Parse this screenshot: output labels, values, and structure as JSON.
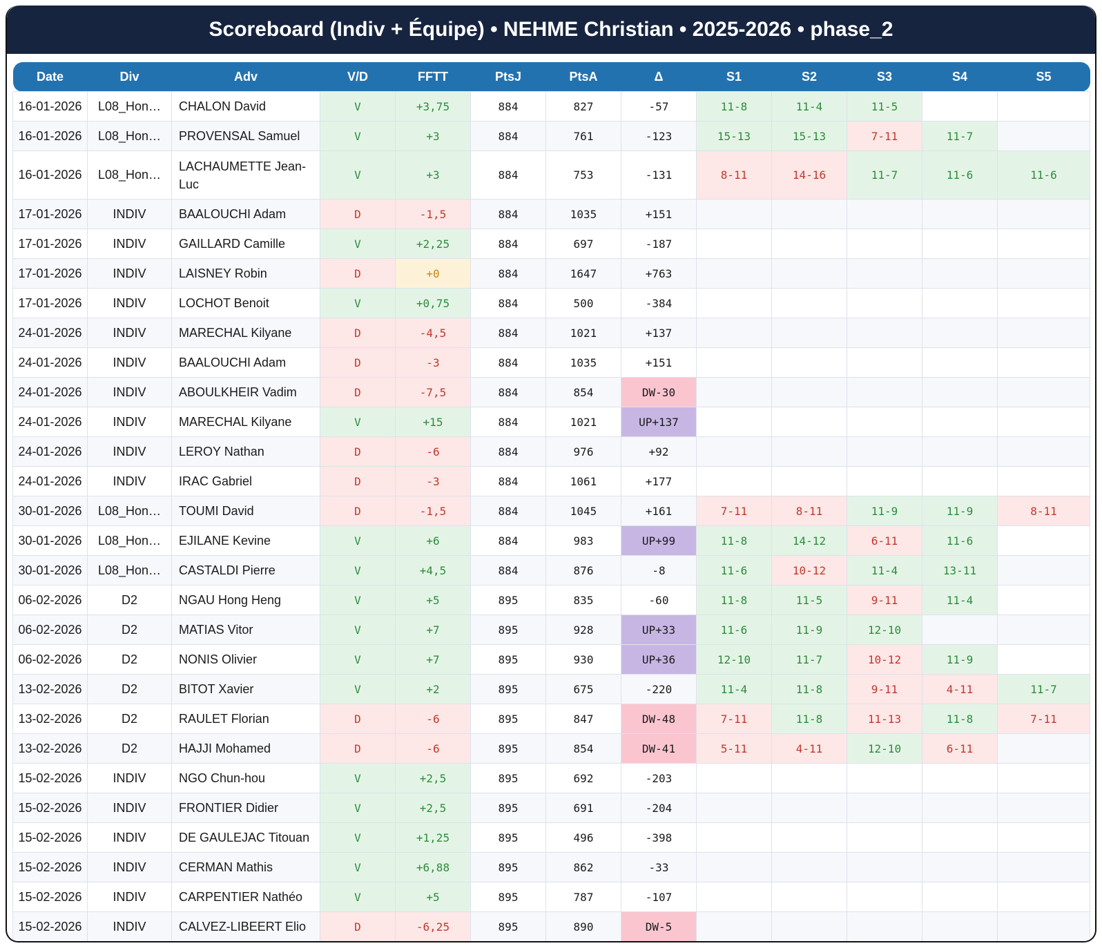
{
  "title": "Scoreboard (Indiv + Équipe) • NEHME Christian • 2025-2026 • phase_2",
  "columns": [
    "Date",
    "Div",
    "Adv",
    "V/D",
    "FFTT",
    "PtsJ",
    "PtsA",
    "Δ",
    "S1",
    "S2",
    "S3",
    "S4",
    "S5"
  ],
  "rows": [
    {
      "date": "16-01-2026",
      "div": "L08_Hon…",
      "adv": "CHALON David",
      "vd": "V",
      "fftt": "+3,75",
      "ptsj": "884",
      "ptsa": "827",
      "delta": "-57",
      "sets": [
        "11-8",
        "11-4",
        "11-5",
        "",
        ""
      ]
    },
    {
      "date": "16-01-2026",
      "div": "L08_Hon…",
      "adv": "PROVENSAL Samuel",
      "vd": "V",
      "fftt": "+3",
      "ptsj": "884",
      "ptsa": "761",
      "delta": "-123",
      "sets": [
        "15-13",
        "15-13",
        "7-11",
        "11-7",
        ""
      ]
    },
    {
      "date": "16-01-2026",
      "div": "L08_Hon…",
      "adv": "LACHAUMETTE Jean-Luc",
      "vd": "V",
      "fftt": "+3",
      "ptsj": "884",
      "ptsa": "753",
      "delta": "-131",
      "sets": [
        "8-11",
        "14-16",
        "11-7",
        "11-6",
        "11-6"
      ],
      "tall": true
    },
    {
      "date": "17-01-2026",
      "div": "INDIV",
      "adv": "BAALOUCHI Adam",
      "vd": "D",
      "fftt": "-1,5",
      "ptsj": "884",
      "ptsa": "1035",
      "delta": "+151",
      "sets": [
        "",
        "",
        "",
        "",
        ""
      ]
    },
    {
      "date": "17-01-2026",
      "div": "INDIV",
      "adv": "GAILLARD Camille",
      "vd": "V",
      "fftt": "+2,25",
      "ptsj": "884",
      "ptsa": "697",
      "delta": "-187",
      "sets": [
        "",
        "",
        "",
        "",
        ""
      ]
    },
    {
      "date": "17-01-2026",
      "div": "INDIV",
      "adv": "LAISNEY Robin",
      "vd": "D",
      "fftt": "+0",
      "ptsj": "884",
      "ptsa": "1647",
      "delta": "+763",
      "sets": [
        "",
        "",
        "",
        "",
        ""
      ]
    },
    {
      "date": "17-01-2026",
      "div": "INDIV",
      "adv": "LOCHOT Benoit",
      "vd": "V",
      "fftt": "+0,75",
      "ptsj": "884",
      "ptsa": "500",
      "delta": "-384",
      "sets": [
        "",
        "",
        "",
        "",
        ""
      ]
    },
    {
      "date": "24-01-2026",
      "div": "INDIV",
      "adv": "MARECHAL Kilyane",
      "vd": "D",
      "fftt": "-4,5",
      "ptsj": "884",
      "ptsa": "1021",
      "delta": "+137",
      "sets": [
        "",
        "",
        "",
        "",
        ""
      ]
    },
    {
      "date": "24-01-2026",
      "div": "INDIV",
      "adv": "BAALOUCHI Adam",
      "vd": "D",
      "fftt": "-3",
      "ptsj": "884",
      "ptsa": "1035",
      "delta": "+151",
      "sets": [
        "",
        "",
        "",
        "",
        ""
      ]
    },
    {
      "date": "24-01-2026",
      "div": "INDIV",
      "adv": "ABOULKHEIR Vadim",
      "vd": "D",
      "fftt": "-7,5",
      "ptsj": "884",
      "ptsa": "854",
      "delta": "DW-30",
      "sets": [
        "",
        "",
        "",
        "",
        ""
      ]
    },
    {
      "date": "24-01-2026",
      "div": "INDIV",
      "adv": "MARECHAL Kilyane",
      "vd": "V",
      "fftt": "+15",
      "ptsj": "884",
      "ptsa": "1021",
      "delta": "UP+137",
      "sets": [
        "",
        "",
        "",
        "",
        ""
      ]
    },
    {
      "date": "24-01-2026",
      "div": "INDIV",
      "adv": "LEROY Nathan",
      "vd": "D",
      "fftt": "-6",
      "ptsj": "884",
      "ptsa": "976",
      "delta": "+92",
      "sets": [
        "",
        "",
        "",
        "",
        ""
      ]
    },
    {
      "date": "24-01-2026",
      "div": "INDIV",
      "adv": "IRAC Gabriel",
      "vd": "D",
      "fftt": "-3",
      "ptsj": "884",
      "ptsa": "1061",
      "delta": "+177",
      "sets": [
        "",
        "",
        "",
        "",
        ""
      ]
    },
    {
      "date": "30-01-2026",
      "div": "L08_Hon…",
      "adv": "TOUMI David",
      "vd": "D",
      "fftt": "-1,5",
      "ptsj": "884",
      "ptsa": "1045",
      "delta": "+161",
      "sets": [
        "7-11",
        "8-11",
        "11-9",
        "11-9",
        "8-11"
      ]
    },
    {
      "date": "30-01-2026",
      "div": "L08_Hon…",
      "adv": "EJILANE Kevine",
      "vd": "V",
      "fftt": "+6",
      "ptsj": "884",
      "ptsa": "983",
      "delta": "UP+99",
      "sets": [
        "11-8",
        "14-12",
        "6-11",
        "11-6",
        ""
      ]
    },
    {
      "date": "30-01-2026",
      "div": "L08_Hon…",
      "adv": "CASTALDI Pierre",
      "vd": "V",
      "fftt": "+4,5",
      "ptsj": "884",
      "ptsa": "876",
      "delta": "-8",
      "sets": [
        "11-6",
        "10-12",
        "11-4",
        "13-11",
        ""
      ]
    },
    {
      "date": "06-02-2026",
      "div": "D2",
      "adv": "NGAU Hong Heng",
      "vd": "V",
      "fftt": "+5",
      "ptsj": "895",
      "ptsa": "835",
      "delta": "-60",
      "sets": [
        "11-8",
        "11-5",
        "9-11",
        "11-4",
        ""
      ]
    },
    {
      "date": "06-02-2026",
      "div": "D2",
      "adv": "MATIAS Vitor",
      "vd": "V",
      "fftt": "+7",
      "ptsj": "895",
      "ptsa": "928",
      "delta": "UP+33",
      "sets": [
        "11-6",
        "11-9",
        "12-10",
        "",
        ""
      ]
    },
    {
      "date": "06-02-2026",
      "div": "D2",
      "adv": "NONIS Olivier",
      "vd": "V",
      "fftt": "+7",
      "ptsj": "895",
      "ptsa": "930",
      "delta": "UP+36",
      "sets": [
        "12-10",
        "11-7",
        "10-12",
        "11-9",
        ""
      ]
    },
    {
      "date": "13-02-2026",
      "div": "D2",
      "adv": "BITOT Xavier",
      "vd": "V",
      "fftt": "+2",
      "ptsj": "895",
      "ptsa": "675",
      "delta": "-220",
      "sets": [
        "11-4",
        "11-8",
        "9-11",
        "4-11",
        "11-7"
      ]
    },
    {
      "date": "13-02-2026",
      "div": "D2",
      "adv": "RAULET Florian",
      "vd": "D",
      "fftt": "-6",
      "ptsj": "895",
      "ptsa": "847",
      "delta": "DW-48",
      "sets": [
        "7-11",
        "11-8",
        "11-13",
        "11-8",
        "7-11"
      ]
    },
    {
      "date": "13-02-2026",
      "div": "D2",
      "adv": "HAJJI Mohamed",
      "vd": "D",
      "fftt": "-6",
      "ptsj": "895",
      "ptsa": "854",
      "delta": "DW-41",
      "sets": [
        "5-11",
        "4-11",
        "12-10",
        "6-11",
        ""
      ]
    },
    {
      "date": "15-02-2026",
      "div": "INDIV",
      "adv": "NGO Chun-hou",
      "vd": "V",
      "fftt": "+2,5",
      "ptsj": "895",
      "ptsa": "692",
      "delta": "-203",
      "sets": [
        "",
        "",
        "",
        "",
        ""
      ]
    },
    {
      "date": "15-02-2026",
      "div": "INDIV",
      "adv": "FRONTIER Didier",
      "vd": "V",
      "fftt": "+2,5",
      "ptsj": "895",
      "ptsa": "691",
      "delta": "-204",
      "sets": [
        "",
        "",
        "",
        "",
        ""
      ]
    },
    {
      "date": "15-02-2026",
      "div": "INDIV",
      "adv": "DE GAULEJAC Titouan",
      "vd": "V",
      "fftt": "+1,25",
      "ptsj": "895",
      "ptsa": "496",
      "delta": "-398",
      "sets": [
        "",
        "",
        "",
        "",
        ""
      ]
    },
    {
      "date": "15-02-2026",
      "div": "INDIV",
      "adv": "CERMAN Mathis",
      "vd": "V",
      "fftt": "+6,88",
      "ptsj": "895",
      "ptsa": "862",
      "delta": "-33",
      "sets": [
        "",
        "",
        "",
        "",
        ""
      ]
    },
    {
      "date": "15-02-2026",
      "div": "INDIV",
      "adv": "CARPENTIER Nathéo",
      "vd": "V",
      "fftt": "+5",
      "ptsj": "895",
      "ptsa": "787",
      "delta": "-107",
      "sets": [
        "",
        "",
        "",
        "",
        ""
      ]
    },
    {
      "date": "15-02-2026",
      "div": "INDIV",
      "adv": "CALVEZ-LIBEERT Elio",
      "vd": "D",
      "fftt": "-6,25",
      "ptsj": "895",
      "ptsa": "890",
      "delta": "DW-5",
      "sets": [
        "",
        "",
        "",
        "",
        ""
      ]
    }
  ],
  "colors": {
    "title_bg": "#16243f",
    "header_bg": "#2372b0",
    "win_bg": "#e3f4e6",
    "win_text": "#2e8b3a",
    "loss_bg": "#fde7e7",
    "loss_text": "#c0392b",
    "neutral_bg": "#fdf2d8",
    "neutral_text": "#c48a12",
    "dw_bg": "#fbc5d0",
    "up_bg": "#c7b6e4"
  }
}
